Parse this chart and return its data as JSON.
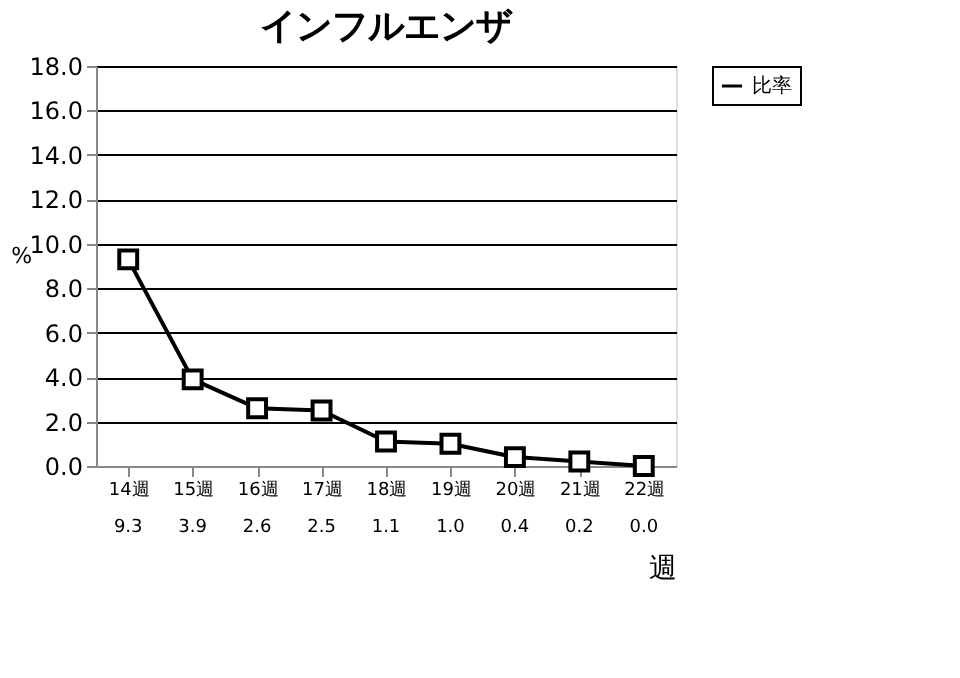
{
  "chart_data": {
    "type": "line",
    "title": "インフルエンザ",
    "ylabel": "%",
    "xlabel": "週",
    "categories": [
      "14週",
      "15週",
      "16週",
      "17週",
      "18週",
      "19週",
      "20週",
      "21週",
      "22週"
    ],
    "series": [
      {
        "name": "比率",
        "color": "#000000",
        "values": [
          9.3,
          3.9,
          2.6,
          2.5,
          1.1,
          1.0,
          0.4,
          0.2,
          0.0
        ],
        "value_labels": [
          "9.3",
          "3.9",
          "2.6",
          "2.5",
          "1.1",
          "1.0",
          "0.4",
          "0.2",
          "0.0"
        ]
      }
    ],
    "ylim": [
      0,
      18
    ],
    "yticks": [
      {
        "value": 0,
        "label": "0.0"
      },
      {
        "value": 2,
        "label": "2.0"
      },
      {
        "value": 4,
        "label": "4.0"
      },
      {
        "value": 6,
        "label": "6.0"
      },
      {
        "value": 8,
        "label": "8.0"
      },
      {
        "value": 10,
        "label": "10.0"
      },
      {
        "value": 12,
        "label": "12.0"
      },
      {
        "value": 14,
        "label": "14.0"
      },
      {
        "value": 16,
        "label": "16.0"
      },
      {
        "value": 18,
        "label": "18.0"
      }
    ],
    "grid": "y",
    "legend": "top right",
    "marker": "square",
    "line_style": "solid"
  }
}
